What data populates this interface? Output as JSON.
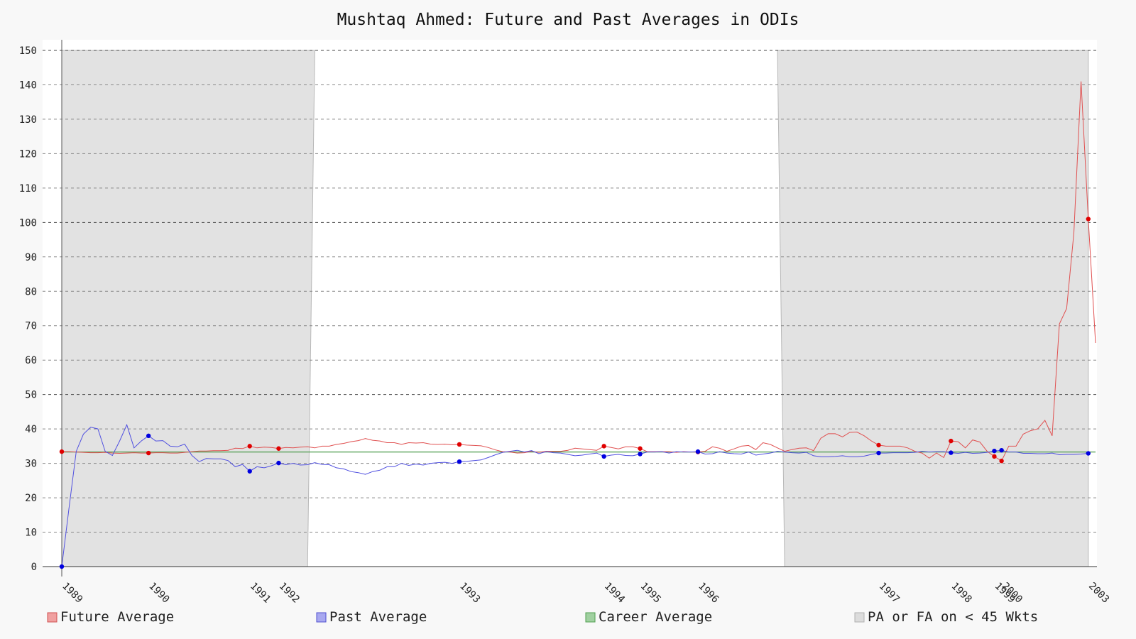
{
  "chart_data": {
    "type": "line",
    "title": "Mushtaq Ahmed: Future and Past Averages in ODIs",
    "xlabel": "",
    "ylabel": "",
    "ylim": [
      0,
      150
    ],
    "yticks": [
      0,
      10,
      20,
      30,
      40,
      50,
      60,
      70,
      80,
      90,
      100,
      110,
      120,
      130,
      140,
      150
    ],
    "grid": true,
    "legend_position": "bottom",
    "x_year_labels": [
      {
        "label": "1989",
        "i": 0
      },
      {
        "label": "1990",
        "i": 12
      },
      {
        "label": "1991",
        "i": 26
      },
      {
        "label": "1992",
        "i": 30
      },
      {
        "label": "1993",
        "i": 55
      },
      {
        "label": "1994",
        "i": 75
      },
      {
        "label": "1995",
        "i": 80
      },
      {
        "label": "1996",
        "i": 88
      },
      {
        "label": "1997",
        "i": 113
      },
      {
        "label": "1998",
        "i": 123
      },
      {
        "label": "1999",
        "i": 129
      },
      {
        "label": "2000",
        "i": 130
      },
      {
        "label": "2003",
        "i": 142
      }
    ],
    "shaded_regions": [
      {
        "from_i": 0,
        "to_i_top": 35,
        "to_i_bottom": 34
      },
      {
        "from_i_top": 99,
        "from_i_bottom": 100,
        "to_i": 142
      }
    ],
    "series": [
      {
        "name": "Future Average",
        "color": "#e05050",
        "values": [
          33.4,
          33.4,
          33.3,
          33.2,
          33.1,
          33.1,
          33.2,
          33.0,
          32.9,
          33.0,
          33.1,
          33.0,
          33.0,
          33.1,
          33.1,
          33.0,
          33.0,
          33.2,
          33.4,
          33.6,
          33.6,
          33.7,
          33.7,
          33.8,
          34.4,
          34.3,
          35.0,
          34.5,
          34.7,
          34.6,
          34.3,
          34.6,
          34.5,
          34.7,
          34.8,
          34.5,
          35.0,
          35.0,
          35.5,
          35.8,
          36.3,
          36.6,
          37.2,
          36.7,
          36.5,
          36.0,
          36.0,
          35.5,
          36.0,
          35.9,
          36.0,
          35.6,
          35.5,
          35.6,
          35.4,
          35.5,
          35.3,
          35.2,
          35.1,
          34.6,
          33.9,
          33.4,
          33.3,
          33.0,
          33.1,
          33.5,
          33.2,
          33.5,
          33.5,
          33.5,
          33.8,
          34.4,
          34.2,
          34.0,
          33.8,
          35.0,
          34.6,
          34.2,
          34.8,
          34.8,
          34.3,
          33.4,
          33.4,
          33.4,
          33.4,
          33.2,
          33.4,
          33.3,
          33.3,
          33.5,
          34.8,
          34.4,
          33.5,
          34.2,
          35.0,
          35.2,
          34.0,
          36.0,
          35.5,
          34.5,
          33.5,
          34.0,
          34.4,
          34.5,
          33.7,
          37.3,
          38.6,
          38.6,
          37.7,
          39.0,
          39.1,
          38.0,
          36.5,
          35.3,
          35.0,
          35.0,
          35.0,
          34.5,
          33.5,
          33.0,
          31.5,
          33.0,
          31.7,
          36.5,
          36.3,
          34.5,
          36.8,
          36.2,
          33.5,
          32.0,
          30.7,
          35.0,
          35.0,
          38.5,
          39.5,
          40.0,
          42.5,
          38.0,
          70.5,
          75.0,
          97.0,
          141.0,
          101.0,
          65.0
        ],
        "marker_indices": [
          0,
          12,
          26,
          30,
          55,
          75,
          80,
          88,
          113,
          123,
          129,
          130,
          142
        ]
      },
      {
        "name": "Past Average",
        "color": "#5050e0",
        "values": [
          0.0,
          17.0,
          33.5,
          38.5,
          40.5,
          40.0,
          33.5,
          32.3,
          36.5,
          41.2,
          34.5,
          36.5,
          38.0,
          36.5,
          36.6,
          35.0,
          34.8,
          35.6,
          32.3,
          30.5,
          31.4,
          31.3,
          31.3,
          30.8,
          29.0,
          29.7,
          27.7,
          29.0,
          28.7,
          29.3,
          30.1,
          29.6,
          30.0,
          29.5,
          29.6,
          30.2,
          29.7,
          29.6,
          28.7,
          28.4,
          27.6,
          27.3,
          26.8,
          27.6,
          28.0,
          29.0,
          29.0,
          30.0,
          29.4,
          29.8,
          29.5,
          30.0,
          30.2,
          30.3,
          30.0,
          30.5,
          30.6,
          30.8,
          31.0,
          31.7,
          32.5,
          33.2,
          33.5,
          33.8,
          33.3,
          33.7,
          32.8,
          33.4,
          33.1,
          33.0,
          32.6,
          32.2,
          32.4,
          32.7,
          33.0,
          32.0,
          32.4,
          32.6,
          32.3,
          32.2,
          32.7,
          33.3,
          33.3,
          33.4,
          33.0,
          33.4,
          33.3,
          33.3,
          33.4,
          32.7,
          32.8,
          33.4,
          33.0,
          32.8,
          32.7,
          33.3,
          32.4,
          32.7,
          33.0,
          33.5,
          33.3,
          33.1,
          33.0,
          33.2,
          32.2,
          31.9,
          31.9,
          32.0,
          32.2,
          31.9,
          31.9,
          32.1,
          32.6,
          33.0,
          33.0,
          33.1,
          33.1,
          33.1,
          33.2,
          33.5,
          33.3,
          33.4,
          33.4,
          33.1,
          32.9,
          33.2,
          32.9,
          33.0,
          33.2,
          33.6,
          33.8,
          33.3,
          33.3,
          32.9,
          32.9,
          32.8,
          32.8,
          33.0,
          32.5,
          32.6,
          32.6,
          32.7,
          32.9
        ],
        "marker_indices": [
          0,
          12,
          26,
          30,
          55,
          75,
          80,
          88,
          113,
          123,
          129,
          130,
          142
        ]
      },
      {
        "name": "Career Average",
        "color": "#4a9a4a",
        "constant": 33.3
      }
    ],
    "legend": [
      {
        "label": "Future Average",
        "swatch": "#f0a0a0",
        "border": "#d05050"
      },
      {
        "label": "Past Average",
        "swatch": "#a8a8f0",
        "border": "#5050d0"
      },
      {
        "label": "Career Average",
        "swatch": "#a0d0a0",
        "border": "#50a050"
      },
      {
        "label": "PA or FA on < 45 Wkts",
        "swatch": "#dcdcdc",
        "border": "#b0b0b0"
      }
    ]
  }
}
